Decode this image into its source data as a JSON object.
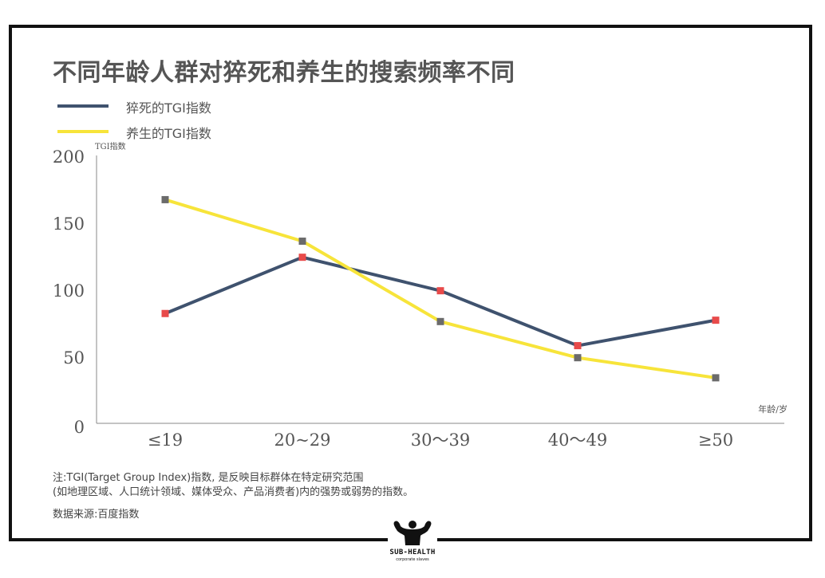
{
  "title": "不同年龄人群对猝死和养生的搜索频率不同",
  "legend": [
    {
      "label": "猝死的TGI指数",
      "color": "#3f526e"
    },
    {
      "label": "养生的TGI指数",
      "color": "#f7e43a"
    }
  ],
  "chart_data": {
    "type": "line",
    "ylabel": "TGI指数",
    "xlabel": "年龄/岁",
    "categories": [
      "≤19",
      "20~29",
      "30～39",
      "40～49",
      "≥50"
    ],
    "yticks": [
      0,
      50,
      100,
      150,
      200
    ],
    "ylim": [
      0,
      200
    ],
    "grid": false,
    "series": [
      {
        "name": "猝死的TGI指数",
        "color": "#3f526e",
        "marker_color": "#e84a4a",
        "values": [
          82,
          124,
          99,
          58,
          77
        ]
      },
      {
        "name": "养生的TGI指数",
        "color": "#f7e43a",
        "marker_color": "#6b6b6b",
        "values": [
          167,
          136,
          76,
          49,
          34
        ]
      }
    ]
  },
  "notes": {
    "line1": "注:TGI(Target Group Index)指数, 是反映目标群体在特定研究范围",
    "line2": "(如地理区域、人口统计领域、媒体受众、产品消费者)内的强势或弱势的指数。",
    "source": "数据来源:百度指数"
  },
  "logo": {
    "name": "SUB-HEALTH",
    "sub": "corporate slaves"
  }
}
